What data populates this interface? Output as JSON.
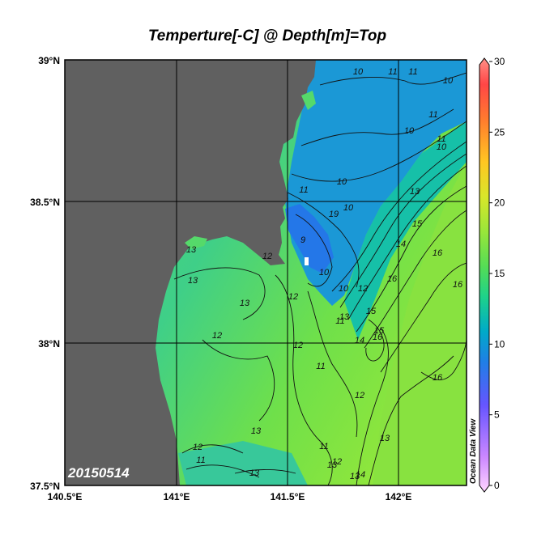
{
  "map": {
    "title": "Temperture[-C] @ Depth[m]=Top",
    "date_label": "20150514",
    "watermark": "Ocean Data View",
    "lat_labels": [
      "39°N",
      "38.5°N",
      "38°N",
      "37.5°N"
    ],
    "lon_labels": [
      "140.5°E",
      "141°E",
      "141.5°E",
      "142°E"
    ],
    "lat_range": [
      37.5,
      39.0
    ],
    "lon_range": [
      140.5,
      142.3
    ],
    "land_color": "#606060",
    "contour_labels": [
      "10",
      "11",
      "11",
      "10",
      "10",
      "11",
      "11",
      "10",
      "13",
      "10",
      "11",
      "10",
      "19",
      "9",
      "13",
      "12",
      "13",
      "10",
      "10",
      "12",
      "14",
      "15",
      "16",
      "15",
      "16",
      "12",
      "12",
      "11",
      "13",
      "11",
      "13",
      "14",
      "15",
      "16",
      "12",
      "12",
      "11",
      "13",
      "16",
      "13",
      "12",
      "11",
      "13",
      "13",
      "12",
      "14",
      "13",
      "16"
    ]
  },
  "colorbar": {
    "ticks": [
      "30",
      "25",
      "20",
      "15",
      "10",
      "5",
      "0"
    ],
    "range": [
      0,
      30
    ],
    "colors": [
      "#ffccff",
      "#9966ff",
      "#3366ff",
      "#0099dd",
      "#00c8a8",
      "#33dd66",
      "#99ee33",
      "#ddee22",
      "#ffcc22",
      "#ff8833",
      "#ff4444",
      "#ff9988"
    ]
  }
}
